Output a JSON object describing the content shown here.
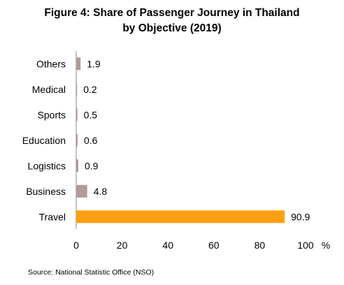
{
  "chart_data": {
    "type": "bar",
    "orientation": "horizontal",
    "title": "Figure 4:  Share of Passenger Journey in Thailand",
    "subtitle": "by Objective (2019)",
    "categories": [
      "Others",
      "Medical",
      "Sports",
      "Education",
      "Logistics",
      "Business",
      "Travel"
    ],
    "values": [
      1.9,
      0.2,
      0.5,
      0.6,
      0.9,
      4.8,
      90.9
    ],
    "value_labels": [
      "1.9",
      "0.2",
      "0.5",
      "0.6",
      "0.9",
      "4.8",
      "90.9"
    ],
    "xlim": [
      0,
      100
    ],
    "xticks": [
      "0",
      "20",
      "40",
      "60",
      "80",
      "100"
    ],
    "xunit": "%",
    "grid": false,
    "colors": {
      "default": "#b29a9a",
      "highlight": "#ffa012",
      "axis": "#888888"
    },
    "highlight_category": "Travel"
  },
  "source": "Source: National Statistic Office (NSO)"
}
